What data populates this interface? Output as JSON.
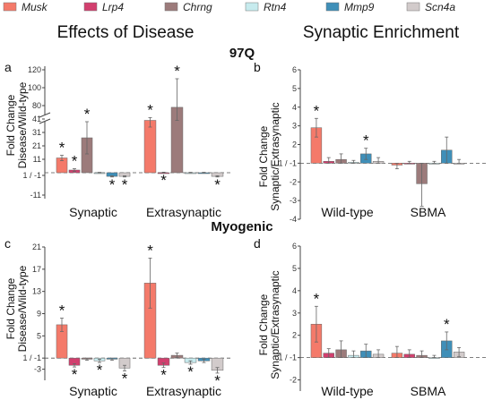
{
  "legend": [
    {
      "name": "Musk",
      "color": "#f47a6a"
    },
    {
      "name": "Lrp4",
      "color": "#d23f6e"
    },
    {
      "name": "Chrng",
      "color": "#9c7b7b"
    },
    {
      "name": "Rtn4",
      "color": "#c7ebee"
    },
    {
      "name": "Mmp9",
      "color": "#3f8fb8"
    },
    {
      "name": "Scn4a",
      "color": "#d2cbcb"
    }
  ],
  "headings": {
    "left": "Effects of Disease",
    "right": "Synaptic Enrichment",
    "row1": "97Q",
    "row2": "Myogenic"
  },
  "chart_data": [
    {
      "panel": "a",
      "type": "bar",
      "ylabel": "Fold Change Disease/Wild-type",
      "ylabel_lines": [
        "Fold Change",
        "Disease/Wild-type"
      ],
      "categories": [
        "Synaptic",
        "Extrasynaptic"
      ],
      "yticks": [
        "120",
        "100",
        "80",
        "41",
        "31",
        "21",
        "11",
        "1 / -1",
        "-11"
      ],
      "axis_break": true,
      "series": [
        {
          "name": "Musk",
          "values": [
            12,
            40
          ],
          "err": [
            2,
            5
          ],
          "star": [
            true,
            true
          ]
        },
        {
          "name": "Lrp4",
          "values": [
            3,
            0.5
          ],
          "err": [
            1,
            0.4
          ],
          "star": [
            true,
            true
          ]
        },
        {
          "name": "Chrng",
          "values": [
            27,
            75
          ],
          "err": [
            12,
            35
          ],
          "star": [
            true,
            true
          ]
        },
        {
          "name": "Rtn4",
          "values": [
            0,
            0
          ],
          "err": [
            0.3,
            0.3
          ],
          "star": [
            false,
            false
          ]
        },
        {
          "name": "Mmp9",
          "values": [
            -1.5,
            0
          ],
          "err": [
            0.3,
            0.3
          ],
          "star": [
            true,
            false
          ]
        },
        {
          "name": "Scn4a",
          "values": [
            -1.5,
            -1.5
          ],
          "err": [
            0.3,
            0.3
          ],
          "star": [
            true,
            true
          ]
        }
      ]
    },
    {
      "panel": "b",
      "type": "bar",
      "ylabel": "Fold Change Synaptic/Extrasynaptic",
      "ylabel_lines": [
        "Fold Change",
        "Synaptic/Extrasynaptic"
      ],
      "categories": [
        "Wild-type",
        "SBMA"
      ],
      "yticks": [
        "6",
        "5",
        "4",
        "3",
        "2",
        "1 / -1",
        "-2",
        "-3",
        "-4"
      ],
      "ylim": [
        -4,
        6
      ],
      "series": [
        {
          "name": "Musk",
          "values": [
            2.9,
            -1.1
          ],
          "err": [
            0.5,
            0.2
          ],
          "star": [
            true,
            false
          ]
        },
        {
          "name": "Lrp4",
          "values": [
            1.1,
            1.0
          ],
          "err": [
            0.2,
            0.1
          ],
          "star": [
            false,
            false
          ]
        },
        {
          "name": "Chrng",
          "values": [
            1.2,
            -2.1
          ],
          "err": [
            0.3,
            1.2
          ],
          "star": [
            false,
            false
          ]
        },
        {
          "name": "Rtn4",
          "values": [
            1.05,
            1.0
          ],
          "err": [
            0.1,
            0.1
          ],
          "star": [
            false,
            false
          ]
        },
        {
          "name": "Mmp9",
          "values": [
            1.5,
            1.7
          ],
          "err": [
            0.3,
            0.7
          ],
          "star": [
            true,
            false
          ]
        },
        {
          "name": "Scn4a",
          "values": [
            1.1,
            1.0
          ],
          "err": [
            0.2,
            0.2
          ],
          "star": [
            false,
            false
          ]
        }
      ]
    },
    {
      "panel": "c",
      "type": "bar",
      "ylabel": "Fold Change Disease/Wild-type",
      "ylabel_lines": [
        "Fold Change",
        "Disease/Wild-type"
      ],
      "categories": [
        "Synaptic",
        "Extrasynaptic"
      ],
      "yticks": [
        "21",
        "17",
        "13",
        "9",
        "5",
        "1 / -1",
        "-3"
      ],
      "ylim": [
        -5,
        21
      ],
      "series": [
        {
          "name": "Musk",
          "values": [
            7,
            14.5
          ],
          "err": [
            1.2,
            4.5
          ],
          "star": [
            true,
            true
          ]
        },
        {
          "name": "Lrp4",
          "values": [
            -2.3,
            -2.3
          ],
          "err": [
            0.3,
            0.4
          ],
          "star": [
            true,
            true
          ]
        },
        {
          "name": "Chrng",
          "values": [
            -1.2,
            1.5
          ],
          "err": [
            0.2,
            0.4
          ],
          "star": [
            false,
            false
          ]
        },
        {
          "name": "Rtn4",
          "values": [
            -1.5,
            -1.8
          ],
          "err": [
            0.3,
            0.3
          ],
          "star": [
            true,
            true
          ]
        },
        {
          "name": "Mmp9",
          "values": [
            -1.2,
            -1.5
          ],
          "err": [
            0.2,
            0.3
          ],
          "star": [
            false,
            false
          ]
        },
        {
          "name": "Scn4a",
          "values": [
            -2.8,
            -3.2
          ],
          "err": [
            0.5,
            0.5
          ],
          "star": [
            true,
            true
          ]
        }
      ]
    },
    {
      "panel": "d",
      "type": "bar",
      "ylabel": "Fold Change Synaptic/Extrasynaptic",
      "ylabel_lines": [
        "Fold Change",
        "Synaptic/Extrasynaptic"
      ],
      "categories": [
        "Wild-type",
        "SBMA"
      ],
      "yticks": [
        "6",
        "5",
        "4",
        "3",
        "2",
        "1 / -1",
        "-2"
      ],
      "ylim": [
        -2.5,
        6
      ],
      "series": [
        {
          "name": "Musk",
          "values": [
            2.5,
            1.2
          ],
          "err": [
            0.8,
            0.3
          ],
          "star": [
            true,
            false
          ]
        },
        {
          "name": "Lrp4",
          "values": [
            1.2,
            1.15
          ],
          "err": [
            0.2,
            0.2
          ],
          "star": [
            false,
            false
          ]
        },
        {
          "name": "Chrng",
          "values": [
            1.35,
            1.1
          ],
          "err": [
            0.4,
            0.2
          ],
          "star": [
            false,
            false
          ]
        },
        {
          "name": "Rtn4",
          "values": [
            1.1,
            1.0
          ],
          "err": [
            0.2,
            0.1
          ],
          "star": [
            false,
            false
          ]
        },
        {
          "name": "Mmp9",
          "values": [
            1.3,
            1.75
          ],
          "err": [
            0.3,
            0.4
          ],
          "star": [
            false,
            true
          ]
        },
        {
          "name": "Scn4a",
          "values": [
            1.15,
            1.25
          ],
          "err": [
            0.2,
            0.2
          ],
          "star": [
            false,
            false
          ]
        }
      ]
    }
  ]
}
